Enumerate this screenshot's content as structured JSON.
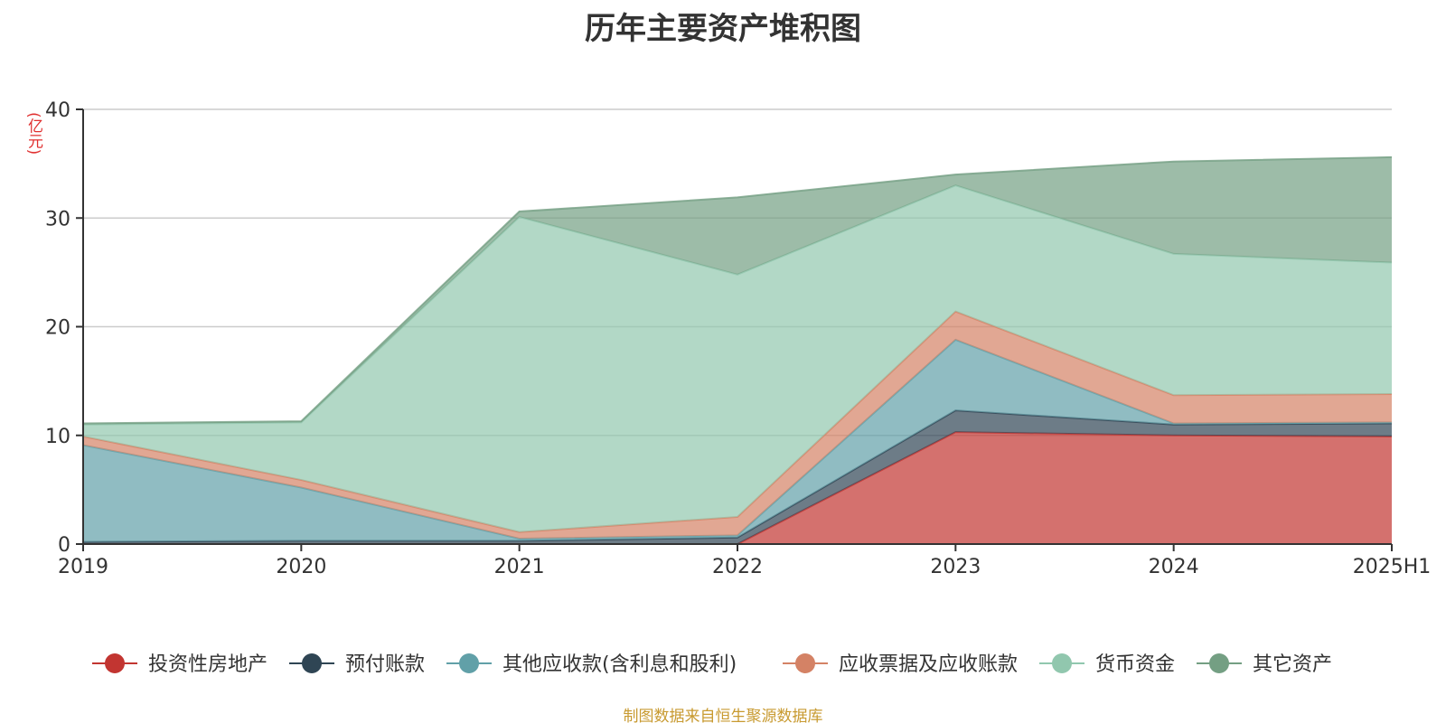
{
  "title": "历年主要资产堆积图",
  "unit_label": "(亿元)",
  "source": "制图数据来自恒生聚源数据库",
  "chart_data": {
    "type": "area",
    "stacked": true,
    "categories": [
      "2019",
      "2020",
      "2021",
      "2022",
      "2023",
      "2024",
      "2025H1"
    ],
    "ylim": [
      0,
      40
    ],
    "yticks": [
      0,
      10,
      20,
      30,
      40
    ],
    "grid": true,
    "legend_position": "bottom",
    "series": [
      {
        "name": "投资性房地产",
        "color": "#c23531",
        "values": [
          0,
          0,
          0,
          0,
          10.3,
          10.0,
          9.9
        ]
      },
      {
        "name": "预付账款",
        "color": "#2f4554",
        "values": [
          0.2,
          0.3,
          0.3,
          0.6,
          2.0,
          1.0,
          1.2
        ]
      },
      {
        "name": "其他应收款(含利息和股利)",
        "color": "#61a0a8",
        "values": [
          8.9,
          4.9,
          0.2,
          0.2,
          6.5,
          0.1,
          0.1
        ]
      },
      {
        "name": "应收票据及应收账款",
        "color": "#d48265",
        "values": [
          0.8,
          0.7,
          0.6,
          1.7,
          2.6,
          2.6,
          2.6
        ]
      },
      {
        "name": "货币资金",
        "color": "#91c7ae",
        "values": [
          1.1,
          5.3,
          29.0,
          22.3,
          11.6,
          13.0,
          12.1
        ]
      },
      {
        "name": "其它资产",
        "color": "#749f83",
        "values": [
          0.1,
          0.1,
          0.5,
          7.1,
          1.0,
          8.5,
          9.7
        ]
      }
    ]
  }
}
